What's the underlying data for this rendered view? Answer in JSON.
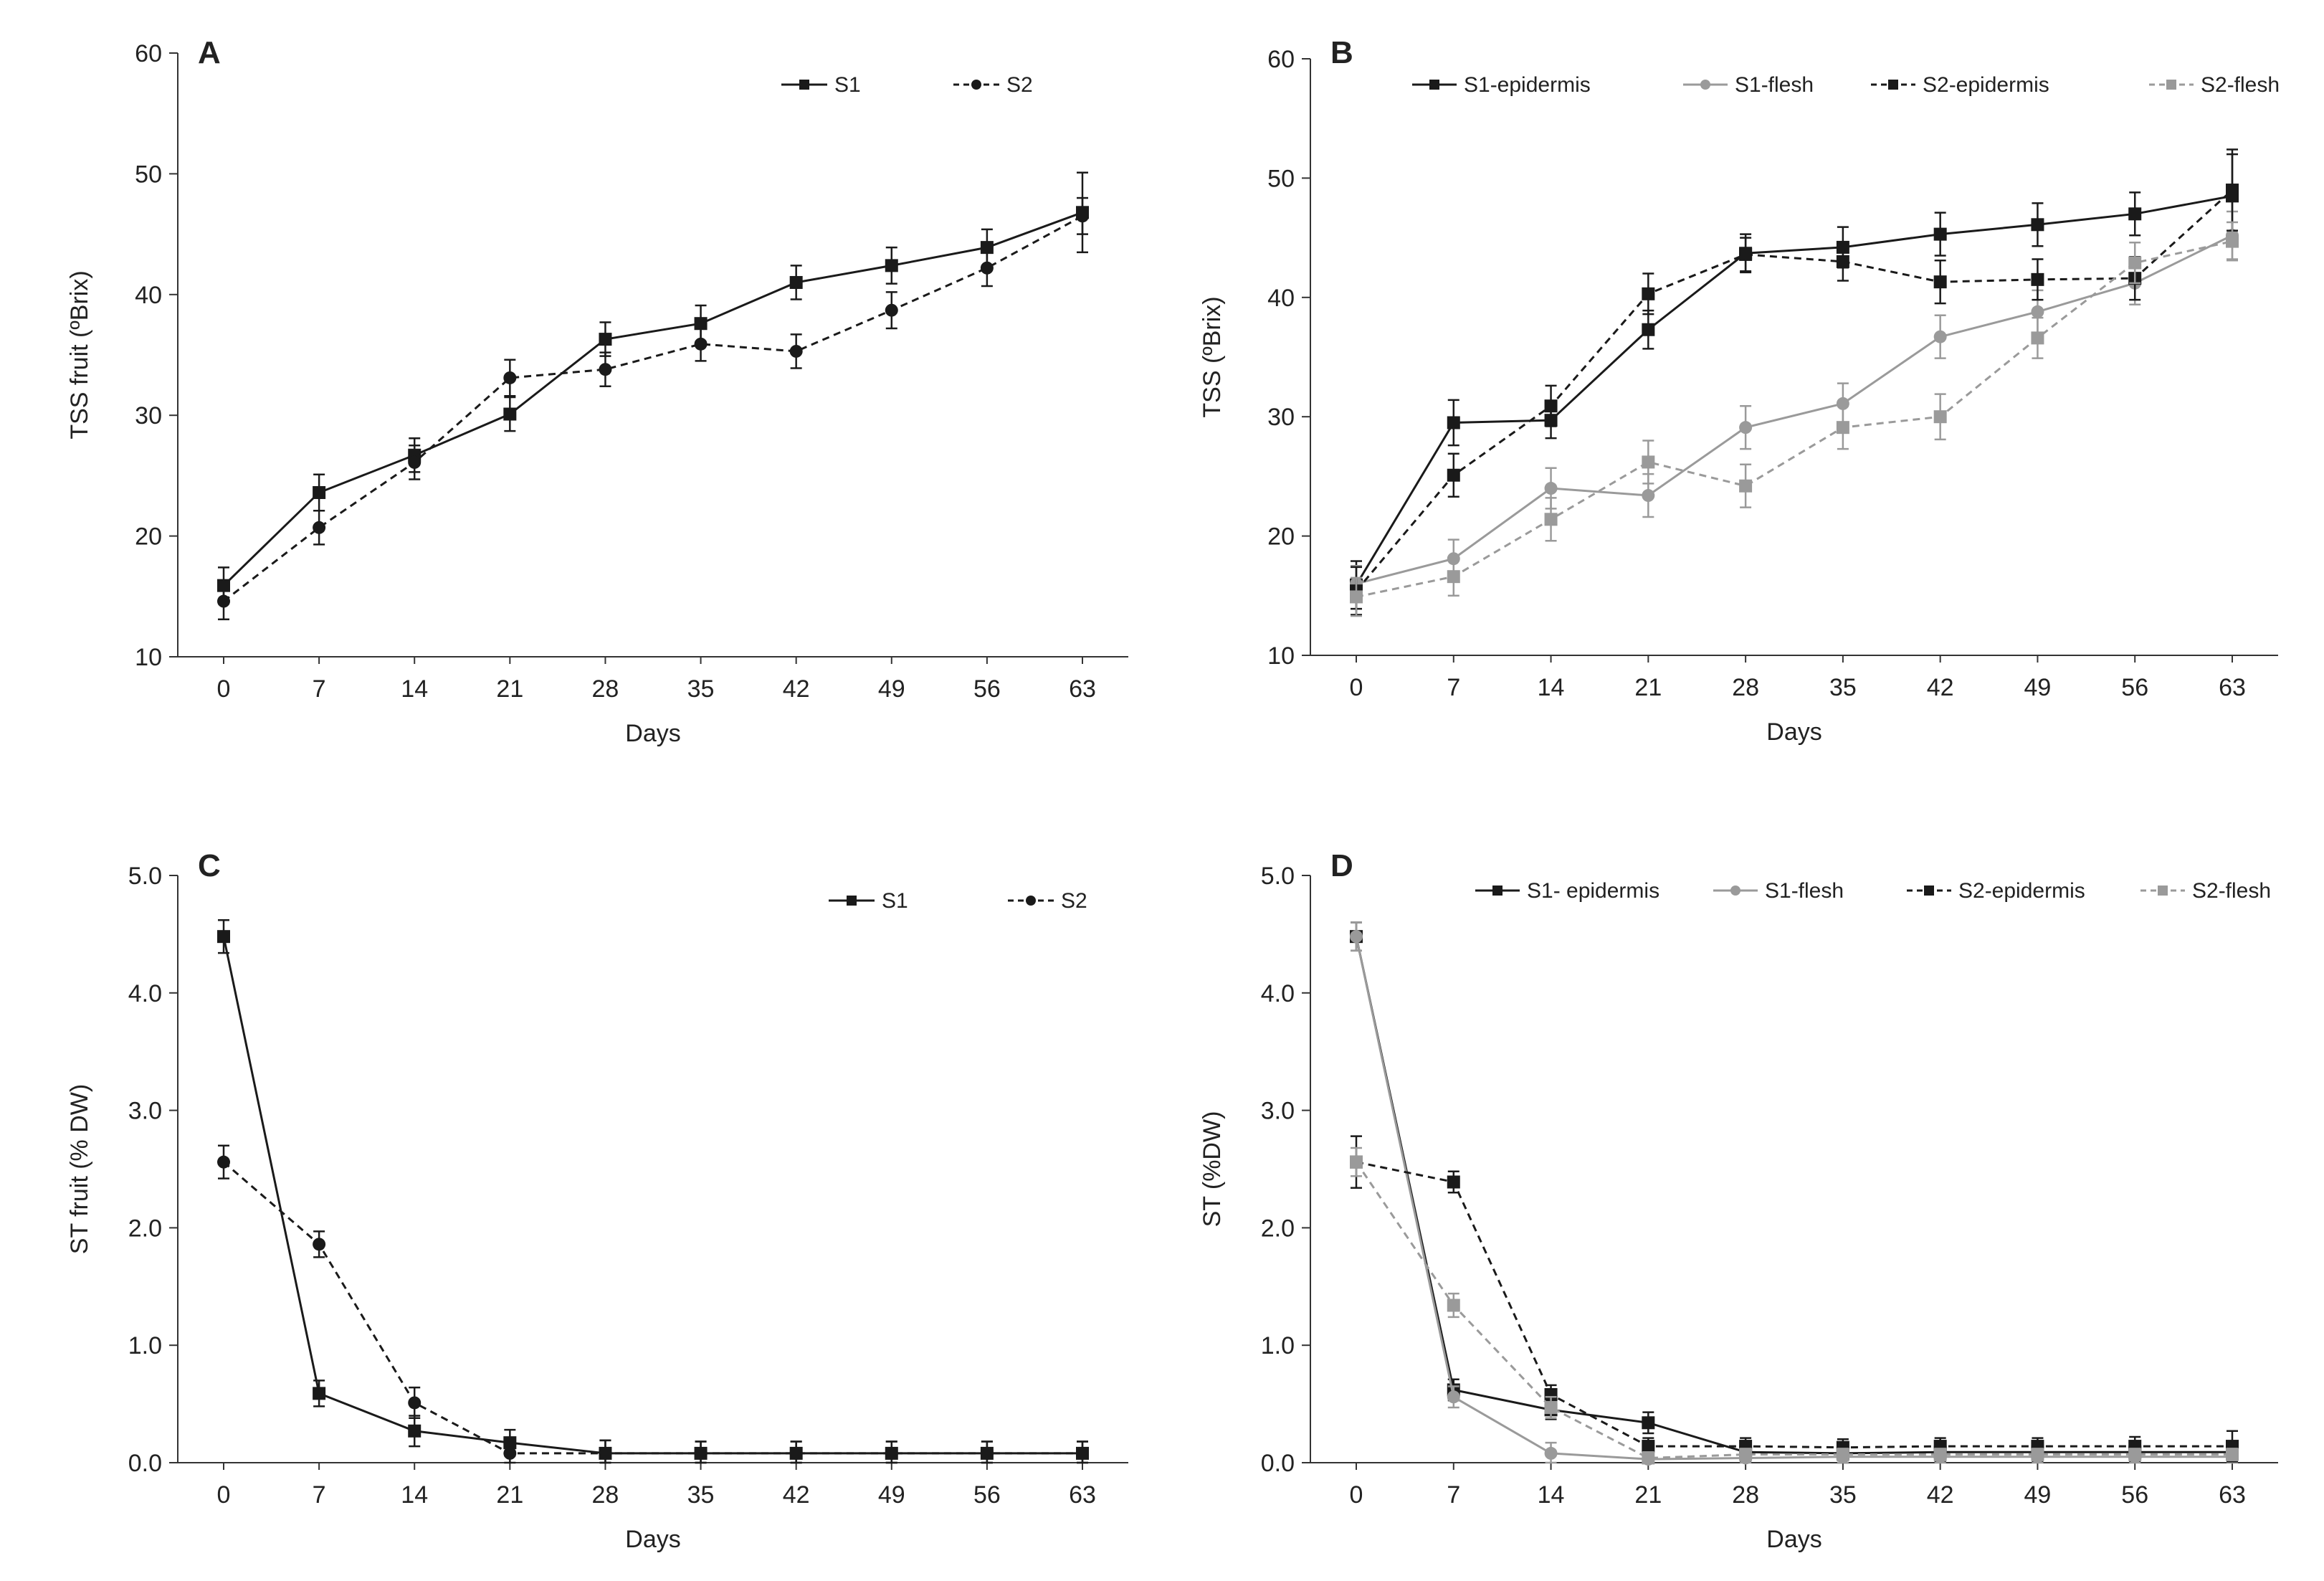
{
  "chart_data": [
    {
      "panel": "A",
      "type": "line",
      "xlabel": "Days",
      "ylabel": "TSS fruit (ºBrix)",
      "ylim": [
        10,
        60
      ],
      "yticks": [
        "10",
        "20",
        "30",
        "40",
        "50",
        "60"
      ],
      "categories": [
        "0",
        "7",
        "14",
        "21",
        "28",
        "35",
        "42",
        "49",
        "56",
        "63"
      ],
      "legend_position": "top-right",
      "series": [
        {
          "name": "S1",
          "style": "solid",
          "color": "#1a1a1a",
          "marker": "square",
          "values": [
            15.9,
            23.6,
            26.7,
            30.1,
            36.3,
            37.6,
            41.0,
            42.4,
            43.9,
            46.8
          ],
          "errors": [
            1.5,
            1.5,
            1.4,
            1.4,
            1.4,
            1.5,
            1.4,
            1.5,
            1.5,
            3.3
          ]
        },
        {
          "name": "S2",
          "style": "dashed",
          "color": "#1a1a1a",
          "marker": "circle",
          "values": [
            14.6,
            20.7,
            26.1,
            33.1,
            33.8,
            35.9,
            35.3,
            38.7,
            42.2,
            46.5
          ],
          "errors": [
            1.5,
            1.4,
            1.4,
            1.5,
            1.4,
            1.4,
            1.4,
            1.5,
            1.5,
            1.5
          ]
        }
      ]
    },
    {
      "panel": "B",
      "type": "line",
      "xlabel": "Days",
      "ylabel": "TSS  (ºBrix)",
      "ylim": [
        10,
        60
      ],
      "yticks": [
        "10",
        "20",
        "30",
        "40",
        "50",
        "60"
      ],
      "categories": [
        "0",
        "7",
        "14",
        "21",
        "28",
        "35",
        "42",
        "49",
        "56",
        "63"
      ],
      "legend_position": "top",
      "series": [
        {
          "name": "S1-epidermis",
          "style": "solid",
          "color": "#1a1a1a",
          "marker": "square",
          "values": [
            15.9,
            29.5,
            29.7,
            37.3,
            43.7,
            44.2,
            45.3,
            46.1,
            47.0,
            48.5
          ],
          "errors": [
            2.0,
            1.9,
            1.5,
            1.6,
            1.6,
            1.7,
            1.8,
            1.8,
            1.8,
            3.5
          ]
        },
        {
          "name": "S1-flesh",
          "style": "solid",
          "color": "#9a9a9a",
          "marker": "circle",
          "values": [
            16.0,
            18.1,
            24.0,
            23.4,
            29.1,
            31.1,
            36.7,
            38.8,
            41.2,
            45.2
          ],
          "errors": [
            1.5,
            1.6,
            1.7,
            1.8,
            1.8,
            1.7,
            1.8,
            1.8,
            1.8,
            2.0
          ]
        },
        {
          "name": "S2-epidermis",
          "style": "dashed",
          "color": "#1a1a1a",
          "marker": "square",
          "values": [
            15.4,
            25.1,
            30.9,
            40.3,
            43.6,
            43.0,
            41.3,
            41.5,
            41.6,
            49.0
          ],
          "errors": [
            2.0,
            1.8,
            1.7,
            1.7,
            1.4,
            1.6,
            1.8,
            1.7,
            1.8,
            3.4
          ]
        },
        {
          "name": "S2-flesh",
          "style": "dashed",
          "color": "#9a9a9a",
          "marker": "square",
          "values": [
            14.9,
            16.6,
            21.4,
            26.2,
            24.2,
            29.1,
            30.0,
            36.6,
            42.9,
            44.7
          ],
          "errors": [
            1.6,
            1.6,
            1.8,
            1.8,
            1.8,
            1.8,
            1.9,
            1.7,
            1.7,
            1.6
          ]
        }
      ]
    },
    {
      "panel": "C",
      "type": "line",
      "xlabel": "Days",
      "ylabel": "ST fruit  (% DW)",
      "ylim": [
        0,
        5
      ],
      "yticks": [
        "0.0",
        "1.0",
        "2.0",
        "3.0",
        "4.0",
        "5.0"
      ],
      "categories": [
        "0",
        "7",
        "14",
        "21",
        "28",
        "35",
        "42",
        "49",
        "56",
        "63"
      ],
      "legend_position": "top-right",
      "series": [
        {
          "name": "S1",
          "style": "solid",
          "color": "#1a1a1a",
          "marker": "square",
          "values": [
            4.48,
            0.59,
            0.27,
            0.17,
            0.08,
            0.08,
            0.08,
            0.08,
            0.08,
            0.08
          ],
          "errors": [
            0.14,
            0.11,
            0.13,
            0.11,
            0.11,
            0.1,
            0.1,
            0.1,
            0.1,
            0.1
          ]
        },
        {
          "name": "S2",
          "style": "dashed",
          "color": "#1a1a1a",
          "marker": "circle",
          "values": [
            2.56,
            1.86,
            0.51,
            0.08,
            0.08,
            0.08,
            0.08,
            0.08,
            0.08,
            0.08
          ],
          "errors": [
            0.14,
            0.11,
            0.13,
            0.11,
            0.11,
            0.1,
            0.1,
            0.1,
            0.1,
            0.1
          ]
        }
      ]
    },
    {
      "panel": "D",
      "type": "line",
      "xlabel": "Days",
      "ylabel": "ST  (%DW)",
      "ylim": [
        0,
        5
      ],
      "yticks": [
        "0.0",
        "1.0",
        "2.0",
        "3.0",
        "4.0",
        "5.0"
      ],
      "categories": [
        "0",
        "7",
        "14",
        "21",
        "28",
        "35",
        "42",
        "49",
        "56",
        "63"
      ],
      "legend_position": "top",
      "series": [
        {
          "name": "S1- epidermis",
          "style": "solid",
          "color": "#1a1a1a",
          "marker": "square",
          "values": [
            4.48,
            0.62,
            0.45,
            0.34,
            0.09,
            0.08,
            0.09,
            0.09,
            0.09,
            0.09
          ],
          "errors": [
            0.12,
            0.09,
            0.08,
            0.09,
            0.08,
            0.08,
            0.08,
            0.08,
            0.08,
            0.08
          ]
        },
        {
          "name": "S1-flesh",
          "style": "solid",
          "color": "#9a9a9a",
          "marker": "circle",
          "values": [
            4.48,
            0.56,
            0.08,
            0.03,
            0.04,
            0.05,
            0.05,
            0.05,
            0.05,
            0.05
          ],
          "errors": [
            0.12,
            0.09,
            0.09,
            0.05,
            0.05,
            0.05,
            0.05,
            0.05,
            0.05,
            0.05
          ]
        },
        {
          "name": "S2-epidermis",
          "style": "dashed",
          "color": "#1a1a1a",
          "marker": "square",
          "values": [
            2.56,
            2.39,
            0.58,
            0.14,
            0.14,
            0.13,
            0.14,
            0.14,
            0.14,
            0.14
          ],
          "errors": [
            0.22,
            0.09,
            0.08,
            0.07,
            0.07,
            0.07,
            0.07,
            0.07,
            0.08,
            0.13
          ]
        },
        {
          "name": "S2-flesh",
          "style": "dashed",
          "color": "#9a9a9a",
          "marker": "square",
          "values": [
            2.56,
            1.34,
            0.47,
            0.04,
            0.07,
            0.07,
            0.07,
            0.07,
            0.07,
            0.07
          ],
          "errors": [
            0.12,
            0.1,
            0.09,
            0.05,
            0.05,
            0.05,
            0.05,
            0.05,
            0.05,
            0.05
          ]
        }
      ]
    }
  ]
}
